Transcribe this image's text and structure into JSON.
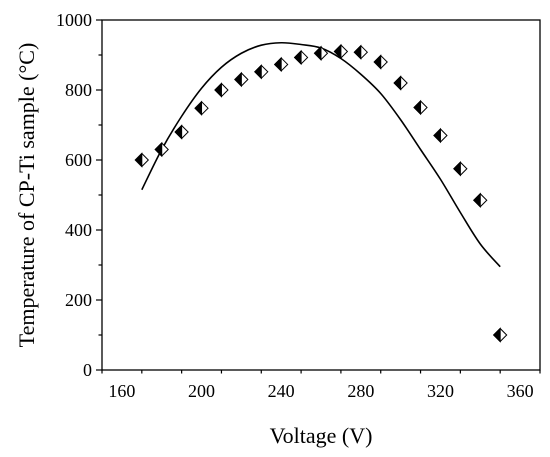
{
  "chart_data": {
    "type": "scatter",
    "xlabel": "Voltage (V)",
    "ylabel": "Temperature of CP-Ti sample (°C)",
    "xlim": [
      150,
      370
    ],
    "ylim": [
      0,
      1000
    ],
    "xticks": [
      160,
      200,
      240,
      280,
      320,
      360
    ],
    "yticks": [
      0,
      200,
      400,
      600,
      800,
      1000
    ],
    "grid": false,
    "legend": "none",
    "series": [
      {
        "type": "scatter",
        "marker": "half-filled-diamond",
        "x": [
          170,
          180,
          190,
          200,
          210,
          220,
          230,
          240,
          250,
          260,
          270,
          280,
          290,
          300,
          310,
          320,
          330,
          340,
          350
        ],
        "y": [
          600,
          630,
          680,
          748,
          800,
          830,
          852,
          873,
          893,
          905,
          910,
          908,
          880,
          820,
          750,
          670,
          575,
          485,
          100
        ]
      },
      {
        "type": "line",
        "fit": "quadratic",
        "x": [
          170,
          180,
          190,
          200,
          210,
          220,
          230,
          240,
          250,
          260,
          270,
          280,
          290,
          300,
          310,
          320,
          330,
          340,
          350
        ],
        "y": [
          515,
          630,
          725,
          805,
          865,
          905,
          928,
          935,
          930,
          920,
          890,
          845,
          790,
          715,
          630,
          545,
          450,
          360,
          295
        ]
      }
    ]
  }
}
